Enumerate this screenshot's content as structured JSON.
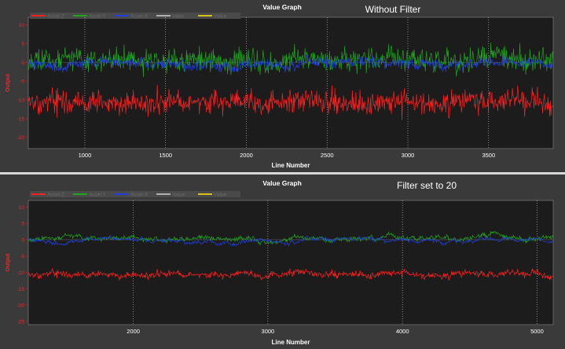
{
  "chart_data": [
    {
      "type": "line",
      "title": "Value Graph",
      "annotation": "Without Filter",
      "xlabel": "Line Number",
      "ylabel": "Output",
      "xlim": [
        650,
        3900
      ],
      "ylim": [
        -23,
        12
      ],
      "xticks": [
        1000,
        1500,
        2000,
        2500,
        3000,
        3500
      ],
      "yticks": [
        10,
        5,
        0,
        -5,
        -10,
        -15,
        -20
      ],
      "grid": true,
      "legend_position": "top-left",
      "series": [
        {
          "name": "Accel Z",
          "color": "#ff2020",
          "mean": -10.5,
          "amplitude": 5.5,
          "values": []
        },
        {
          "name": "Accel Y",
          "color": "#1fa51f",
          "mean": 0.5,
          "amplitude": 5.5,
          "values": []
        },
        {
          "name": "Accel X",
          "color": "#1f3fe0",
          "mean": -0.3,
          "amplitude": 2.2,
          "values": []
        },
        {
          "name": "Value",
          "color": "#b0b0b0",
          "values": []
        },
        {
          "name": "Value",
          "color": "#d4c21a",
          "values": []
        }
      ]
    },
    {
      "type": "line",
      "title": "Value Graph",
      "annotation": "Filter set to 20",
      "xlabel": "Line Number",
      "ylabel": "Output",
      "xlim": [
        1220,
        5120
      ],
      "ylim": [
        -26,
        12
      ],
      "xticks": [
        2000,
        3000,
        4000,
        5000
      ],
      "yticks": [
        10,
        5,
        0,
        -5,
        -10,
        -15,
        -20,
        -25
      ],
      "grid": true,
      "legend_position": "top-left",
      "series": [
        {
          "name": "Accel Z",
          "color": "#ff2020",
          "mean": -10.5,
          "amplitude": 1.7,
          "values": []
        },
        {
          "name": "Accel Y",
          "color": "#1fa51f",
          "mean": 0.3,
          "amplitude": 1.1,
          "values": []
        },
        {
          "name": "Accel X",
          "color": "#1f3fe0",
          "mean": -0.2,
          "amplitude": 0.7,
          "values": []
        },
        {
          "name": "Value",
          "color": "#b0b0b0",
          "values": []
        },
        {
          "name": "Value",
          "color": "#d4c21a",
          "values": []
        }
      ]
    }
  ]
}
